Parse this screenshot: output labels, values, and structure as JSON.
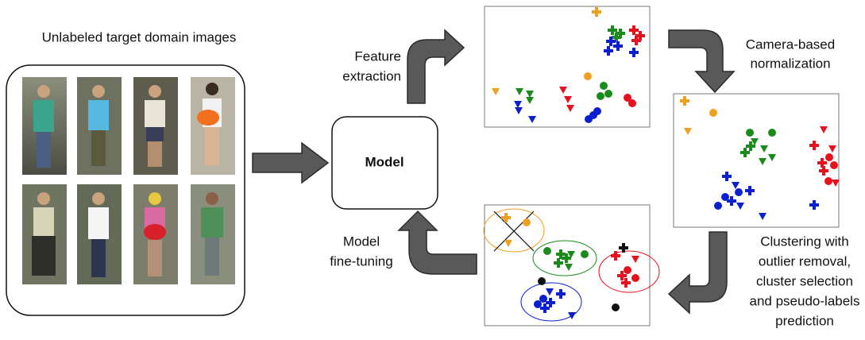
{
  "left_panel": {
    "title": "Unlabeled target domain images"
  },
  "model": {
    "label": "Model"
  },
  "steps": {
    "feature_extraction": [
      "Feature",
      "extraction"
    ],
    "normalization": [
      "Camera-based",
      "normalization"
    ],
    "clustering": [
      "Clustering with",
      "outlier removal,",
      "cluster selection",
      "and pseudo-labels",
      "prediction"
    ],
    "fine_tuning": [
      "Model",
      "fine-tuning"
    ]
  }
}
